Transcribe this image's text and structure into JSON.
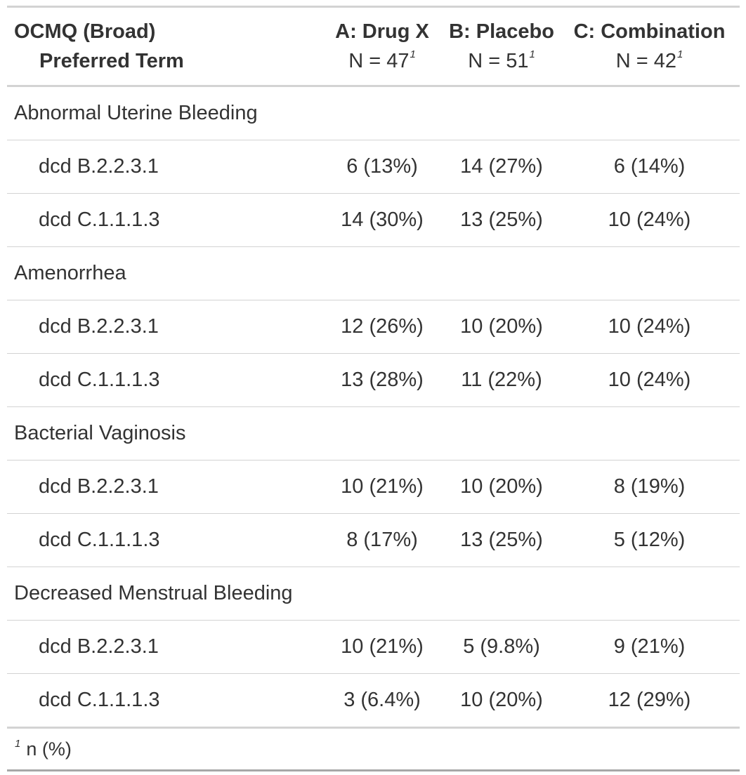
{
  "table": {
    "header": {
      "label_title": "OCMQ (Broad)",
      "label_sub": "Preferred Term",
      "columns": [
        {
          "name": "A: Drug X",
          "n": "N = 47",
          "footnote_mark": "1"
        },
        {
          "name": "B: Placebo",
          "n": "N = 51",
          "footnote_mark": "1"
        },
        {
          "name": "C: Combination",
          "n": "N = 42",
          "footnote_mark": "1"
        }
      ]
    },
    "groups": [
      {
        "label": "Abnormal Uterine Bleeding",
        "rows": [
          {
            "term": "dcd B.2.2.3.1",
            "values": [
              "6 (13%)",
              "14 (27%)",
              "6 (14%)"
            ]
          },
          {
            "term": "dcd C.1.1.1.3",
            "values": [
              "14 (30%)",
              "13 (25%)",
              "10 (24%)"
            ]
          }
        ]
      },
      {
        "label": "Amenorrhea",
        "rows": [
          {
            "term": "dcd B.2.2.3.1",
            "values": [
              "12 (26%)",
              "10 (20%)",
              "10 (24%)"
            ]
          },
          {
            "term": "dcd C.1.1.1.3",
            "values": [
              "13 (28%)",
              "11 (22%)",
              "10 (24%)"
            ]
          }
        ]
      },
      {
        "label": "Bacterial Vaginosis",
        "rows": [
          {
            "term": "dcd B.2.2.3.1",
            "values": [
              "10 (21%)",
              "10 (20%)",
              "8 (19%)"
            ]
          },
          {
            "term": "dcd C.1.1.1.3",
            "values": [
              "8 (17%)",
              "13 (25%)",
              "5 (12%)"
            ]
          }
        ]
      },
      {
        "label": "Decreased Menstrual Bleeding",
        "rows": [
          {
            "term": "dcd B.2.2.3.1",
            "values": [
              "10 (21%)",
              "5 (9.8%)",
              "9 (21%)"
            ]
          },
          {
            "term": "dcd C.1.1.1.3",
            "values": [
              "3 (6.4%)",
              "10 (20%)",
              "12 (29%)"
            ]
          }
        ]
      }
    ],
    "footnote": {
      "mark": "1",
      "text": "n (%)"
    }
  }
}
